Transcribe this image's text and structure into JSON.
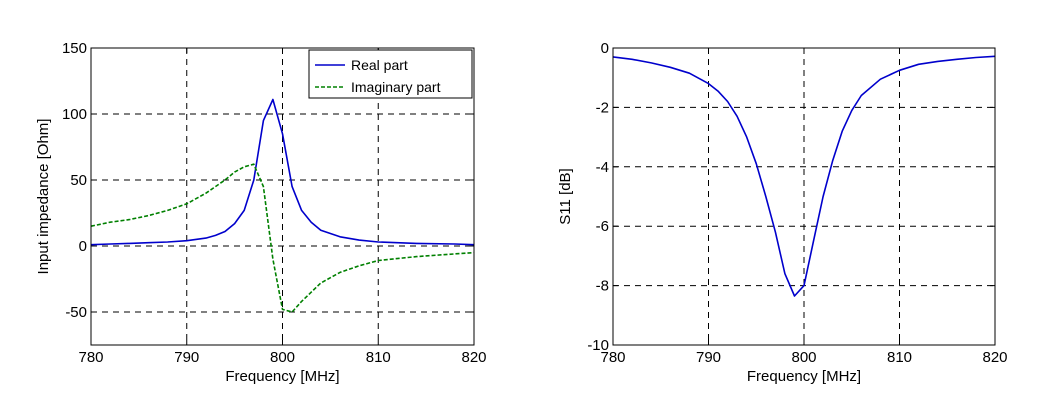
{
  "chart_data": [
    {
      "type": "line",
      "xlabel": "Frequency [MHz]",
      "ylabel": "Input impedance [Ohm]",
      "xlim": [
        780,
        820
      ],
      "ylim": [
        -75,
        150
      ],
      "xticks": [
        780,
        790,
        800,
        810,
        820
      ],
      "yticks": [
        -50,
        0,
        50,
        100,
        150
      ],
      "grid": true,
      "legend_position": "top-right",
      "series": [
        {
          "name": "Real part",
          "color": "#0000cc",
          "style": "solid",
          "x": [
            780,
            782,
            784,
            786,
            788,
            790,
            792,
            793,
            794,
            795,
            796,
            797,
            798,
            799,
            800,
            801,
            802,
            803,
            804,
            806,
            808,
            810,
            814,
            818,
            820
          ],
          "y": [
            1,
            1.5,
            2,
            2.5,
            3,
            4,
            6,
            8,
            11,
            17,
            27,
            50,
            95,
            111,
            85,
            45,
            27,
            18,
            12,
            7,
            4.5,
            3,
            2,
            1.5,
            1
          ]
        },
        {
          "name": "Imaginary part",
          "color": "#008000",
          "style": "dashed",
          "x": [
            780,
            782,
            784,
            786,
            788,
            790,
            792,
            794,
            795,
            796,
            797,
            798,
            799,
            800,
            801,
            802,
            803,
            804,
            806,
            808,
            810,
            814,
            818,
            820
          ],
          "y": [
            15,
            18,
            20,
            23,
            27,
            32,
            40,
            50,
            56,
            60,
            62,
            45,
            -10,
            -48,
            -50,
            -42,
            -35,
            -28,
            -20,
            -15,
            -11,
            -8,
            -6,
            -5
          ]
        }
      ]
    },
    {
      "type": "line",
      "xlabel": "Frequency [MHz]",
      "ylabel": "S11 [dB]",
      "xlim": [
        780,
        820
      ],
      "ylim": [
        -10,
        0
      ],
      "xticks": [
        780,
        790,
        800,
        810,
        820
      ],
      "yticks": [
        -10,
        -8,
        -6,
        -4,
        -2,
        0
      ],
      "grid": true,
      "series": [
        {
          "color": "#0000cc",
          "style": "solid",
          "x": [
            780,
            782,
            784,
            786,
            788,
            790,
            791,
            792,
            793,
            794,
            795,
            796,
            797,
            798,
            799,
            800,
            801,
            802,
            803,
            804,
            805,
            806,
            808,
            810,
            812,
            814,
            816,
            818,
            820
          ],
          "y": [
            -0.3,
            -0.38,
            -0.5,
            -0.65,
            -0.85,
            -1.2,
            -1.45,
            -1.8,
            -2.3,
            -3.0,
            -3.9,
            -5.0,
            -6.2,
            -7.6,
            -8.35,
            -8.0,
            -6.5,
            -5.0,
            -3.8,
            -2.8,
            -2.1,
            -1.6,
            -1.05,
            -0.75,
            -0.55,
            -0.45,
            -0.38,
            -0.32,
            -0.28
          ]
        }
      ]
    }
  ]
}
